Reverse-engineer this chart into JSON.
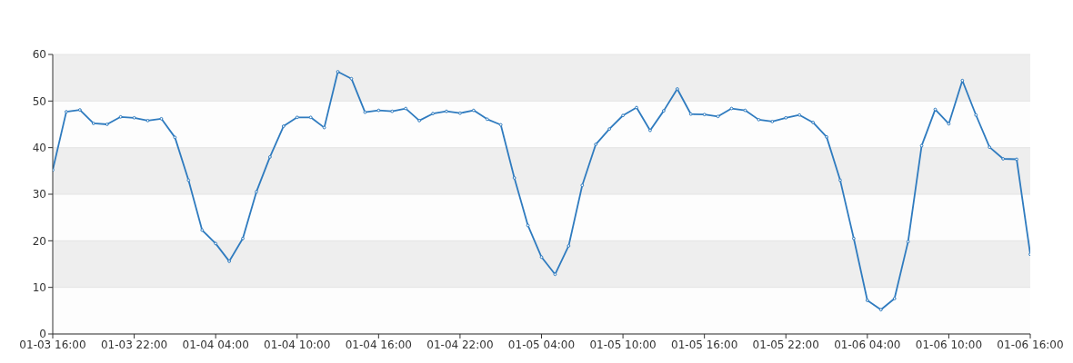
{
  "chart_data": {
    "type": "line",
    "categories": [
      "01-03 16:00",
      null,
      null,
      null,
      null,
      null,
      "01-03 22:00",
      null,
      null,
      null,
      null,
      null,
      "01-04 04:00",
      null,
      null,
      null,
      null,
      null,
      "01-04 10:00",
      null,
      null,
      null,
      null,
      null,
      "01-04 16:00",
      null,
      null,
      null,
      null,
      null,
      "01-04 22:00",
      null,
      null,
      null,
      null,
      null,
      "01-05 04:00",
      null,
      null,
      null,
      null,
      null,
      "01-05 10:00",
      null,
      null,
      null,
      null,
      null,
      "01-05 16:00",
      null,
      null,
      null,
      null,
      null,
      "01-05 22:00",
      null,
      null,
      null,
      null,
      null,
      "01-06 04:00",
      null,
      null,
      null,
      null,
      null,
      "01-06 10:00",
      null,
      null,
      null,
      null,
      null,
      "01-06 16:00"
    ],
    "series": [
      {
        "color": "#2f7bbf",
        "values": [
          35.2,
          47.7,
          48.1,
          45.2,
          45.0,
          46.6,
          46.4,
          45.8,
          46.2,
          42.2,
          33.0,
          22.3,
          19.4,
          15.6,
          20.5,
          30.5,
          38.0,
          44.6,
          46.5,
          46.5,
          44.3,
          56.3,
          54.8,
          47.6,
          48.0,
          47.8,
          48.4,
          45.8,
          47.3,
          47.8,
          47.4,
          48.0,
          46.1,
          44.9,
          33.5,
          23.3,
          16.5,
          12.8,
          18.9,
          31.9,
          40.7,
          44.0,
          46.9,
          48.6,
          43.7,
          47.9,
          52.6,
          47.2,
          47.1,
          46.7,
          48.4,
          48.0,
          46.0,
          45.6,
          46.4,
          47.0,
          45.4,
          42.3,
          33.0,
          20.5,
          7.2,
          5.2,
          7.6,
          19.8,
          40.4,
          48.2,
          45.1,
          54.4,
          47.0,
          40.1,
          37.6,
          37.5,
          17.1
        ]
      }
    ],
    "ylim": [
      0,
      60
    ],
    "yticks": [
      0,
      10,
      20,
      30,
      40,
      50,
      60
    ],
    "grid": "y",
    "marker": "circle",
    "line_style": "solid"
  }
}
